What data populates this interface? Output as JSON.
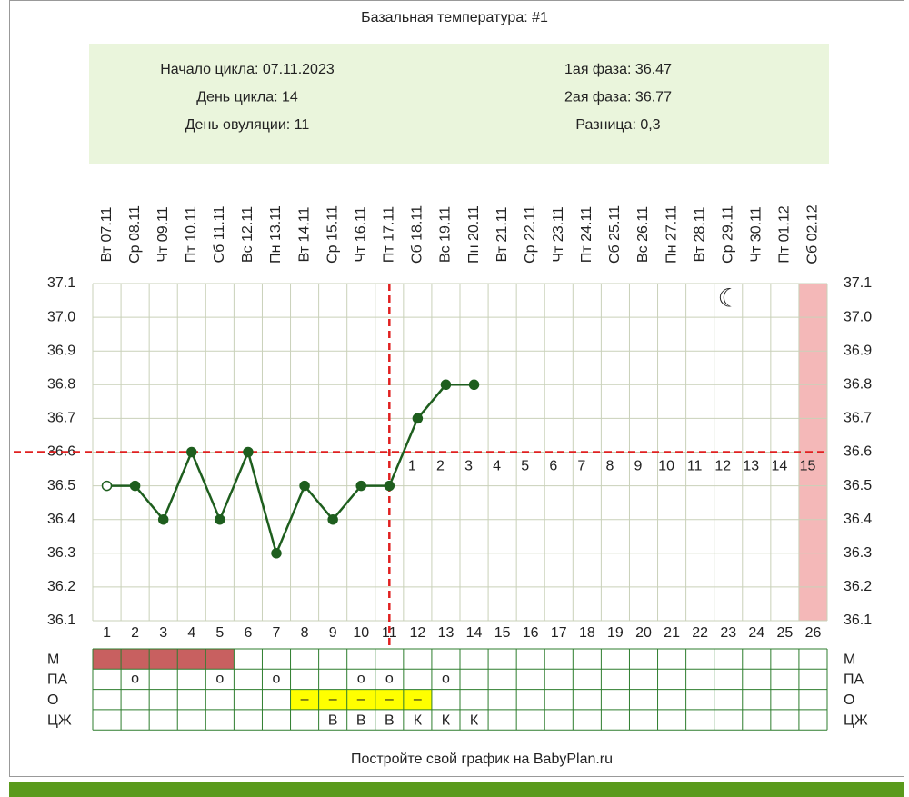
{
  "chart_data": {
    "type": "line",
    "title": "Базальная температура: #1",
    "info_left": [
      "Начало цикла: 07.11.2023",
      "День цикла: 14",
      "День овуляции: 11"
    ],
    "info_right": [
      "1ая фаза: 36.47",
      "2ая фаза: 36.77",
      "Разница: 0,3"
    ],
    "categories": [
      "Вт 07.11",
      "Ср 08.11",
      "Чт 09.11",
      "Пт 10.11",
      "Сб 11.11",
      "Вс 12.11",
      "Пн 13.11",
      "Вт 14.11",
      "Ср 15.11",
      "Чт 16.11",
      "Пт 17.11",
      "Сб 18.11",
      "Вс 19.11",
      "Пн 20.11",
      "Вт 21.11",
      "Ср 22.11",
      "Чт 23.11",
      "Пт 24.11",
      "Сб 25.11",
      "Вс 26.11",
      "Пн 27.11",
      "Вт 28.11",
      "Ср 29.11",
      "Чт 30.11",
      "Пт 01.12",
      "Сб 02.12"
    ],
    "day_numbers": [
      1,
      2,
      3,
      4,
      5,
      6,
      7,
      8,
      9,
      10,
      11,
      12,
      13,
      14,
      15,
      16,
      17,
      18,
      19,
      20,
      21,
      22,
      23,
      24,
      25,
      26
    ],
    "values": [
      36.5,
      36.5,
      36.4,
      36.6,
      36.4,
      36.6,
      36.3,
      36.5,
      36.4,
      36.5,
      36.5,
      36.7,
      36.8,
      36.8,
      null,
      null,
      null,
      null,
      null,
      null,
      null,
      null,
      null,
      null,
      null,
      null
    ],
    "color": "#1e5e1e",
    "ylim": [
      36.1,
      37.1
    ],
    "yticks": [
      {
        "value": 36.1,
        "label": "36.1"
      },
      {
        "value": 36.2,
        "label": "36.2"
      },
      {
        "value": 36.3,
        "label": "36.3"
      },
      {
        "value": 36.4,
        "label": "36.4"
      },
      {
        "value": 36.5,
        "label": "36.5"
      },
      {
        "value": 36.6,
        "label": "36.6"
      },
      {
        "value": 36.7,
        "label": "36.7"
      },
      {
        "value": 36.8,
        "label": "36.8"
      },
      {
        "value": 36.9,
        "label": "36.9"
      },
      {
        "value": 37.0,
        "label": "37.0"
      },
      {
        "value": 37.1,
        "label": "37.1"
      }
    ],
    "grid": true,
    "cover_line": 36.6,
    "ovulation_day": 11,
    "luteal_day_numbers": [
      1,
      2,
      3,
      4,
      5,
      6,
      7,
      8,
      9,
      10,
      11,
      12,
      13,
      14,
      15
    ],
    "highlight_day": 26,
    "table": [
      {
        "label": "М",
        "days": [
          1,
          2,
          3,
          4,
          5
        ]
      },
      {
        "label": "ПА",
        "days": [
          2,
          5,
          7,
          10,
          11,
          13
        ],
        "symbol": "о"
      },
      {
        "label": "О",
        "days": [
          8,
          9,
          10,
          11,
          12
        ],
        "symbol": "–"
      },
      {
        "label": "ЦЖ",
        "entries": [
          {
            "day": 9,
            "text": "В"
          },
          {
            "day": 10,
            "text": "В"
          },
          {
            "day": 11,
            "text": "В"
          },
          {
            "day": 12,
            "text": "К"
          },
          {
            "day": 13,
            "text": "К"
          },
          {
            "day": 14,
            "text": "К"
          }
        ]
      }
    ],
    "footer": "Постройте свой график на BabyPlan.ru"
  }
}
